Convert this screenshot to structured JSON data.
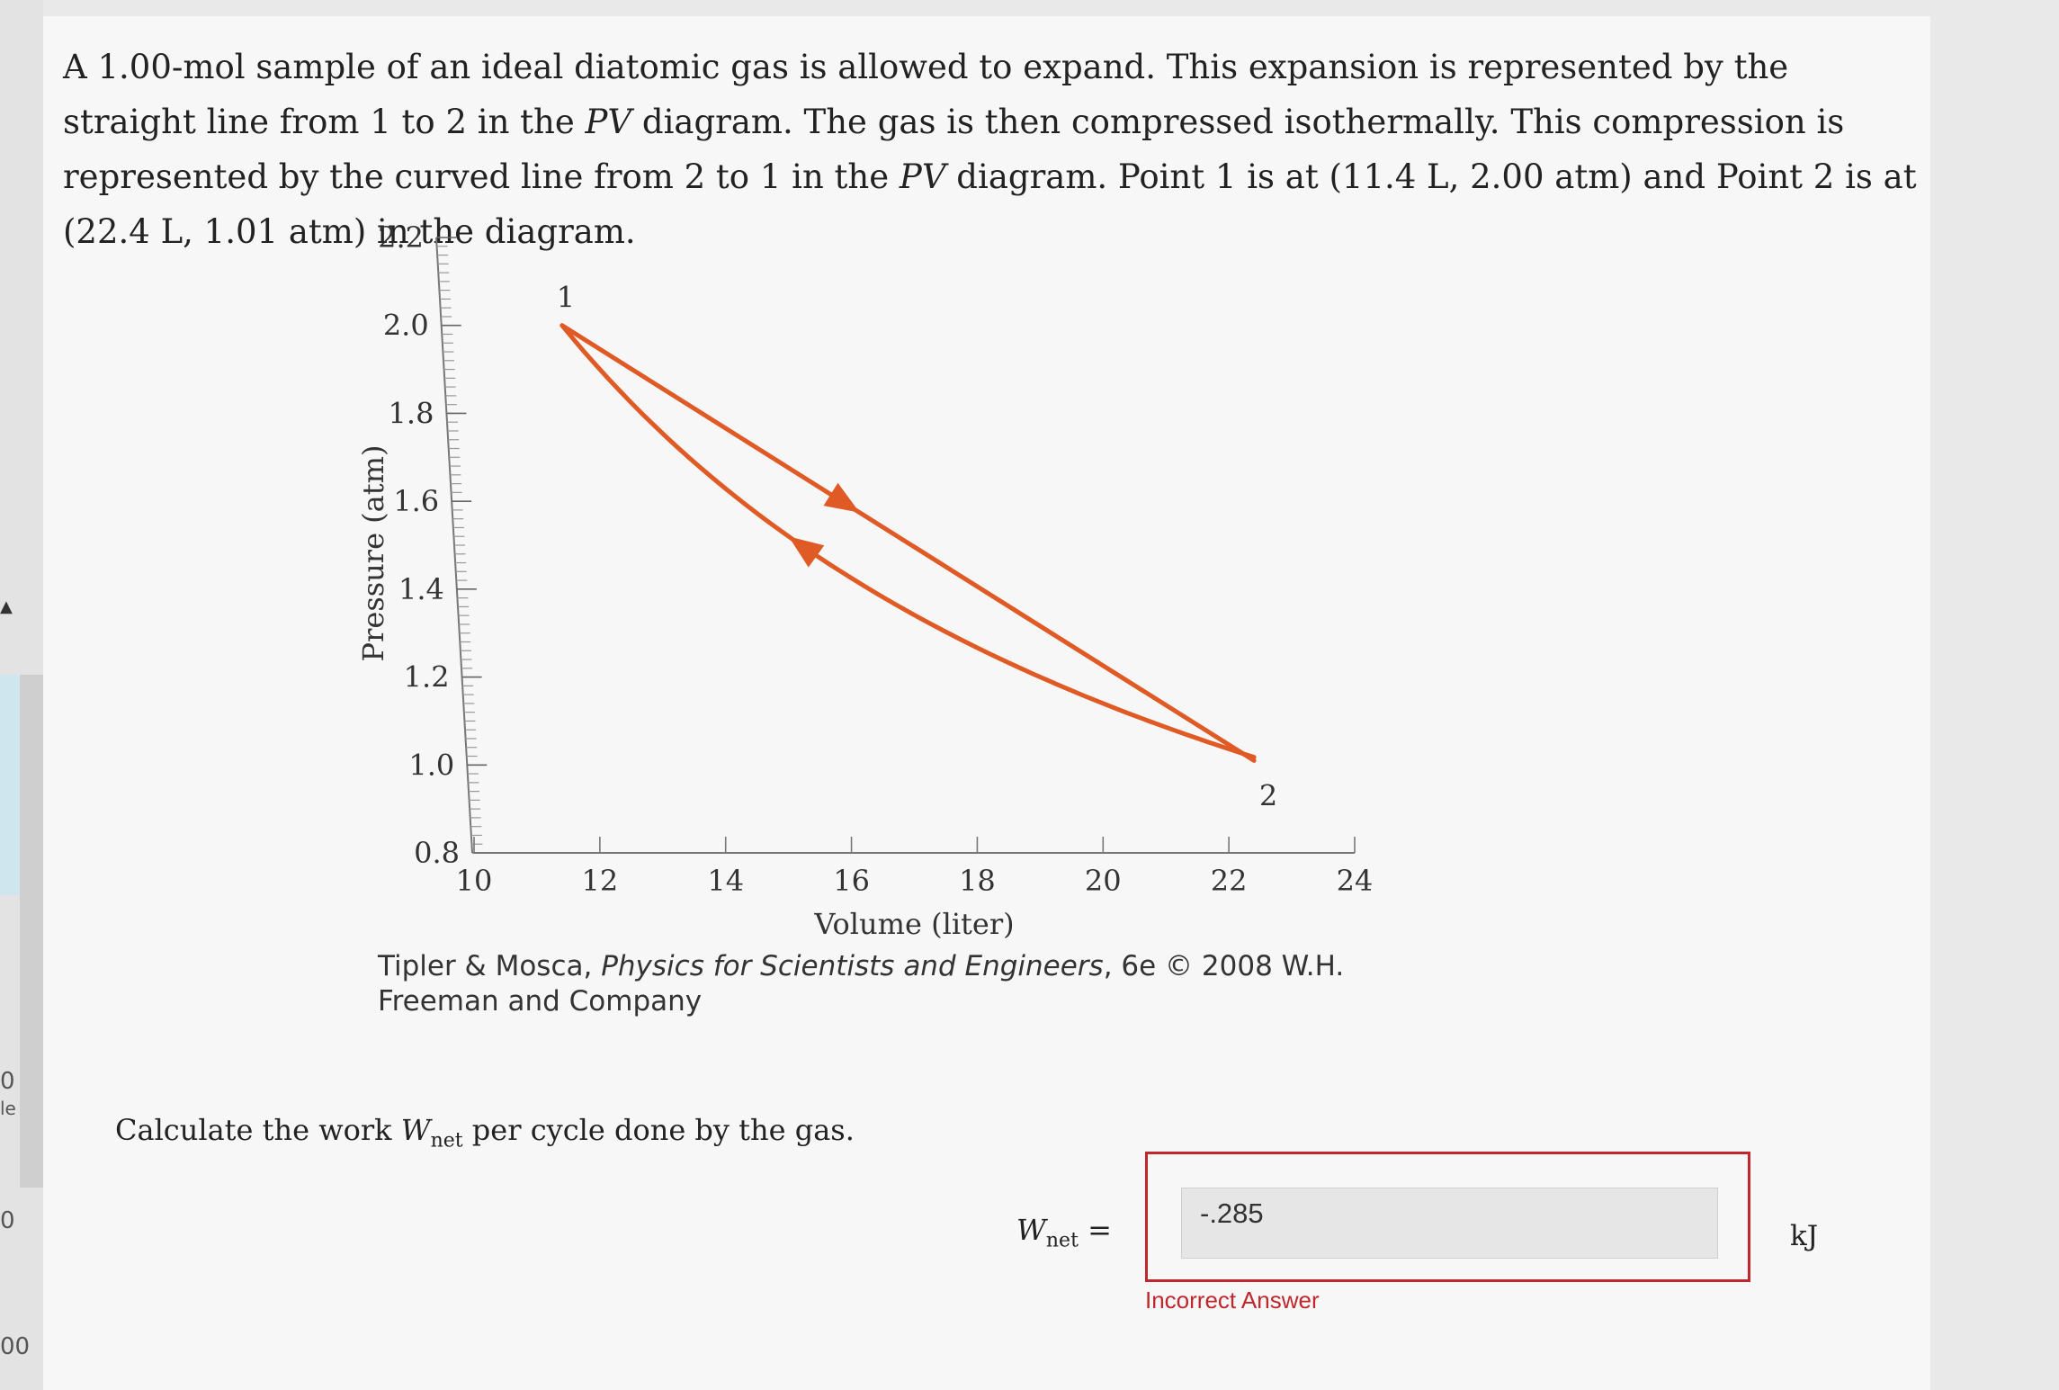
{
  "rail": {
    "texts": [
      "0",
      "le",
      "0",
      "00"
    ]
  },
  "problem": {
    "part1": "A 1.00-mol sample of an ideal diatomic gas is allowed to expand. This expansion is represented by the straight line from 1 to 2 in the ",
    "pv1": "PV",
    "part2": " diagram. The gas is then compressed isothermally. This compression is represented by the curved line from 2 to 1 in the ",
    "pv2": "PV",
    "part3": " diagram. Point 1 is at (11.4 L, 2.00 atm) and Point 2 is at (22.4 L, 1.01 atm) in the diagram."
  },
  "chart_data": {
    "type": "line",
    "xlabel": "Volume (liter)",
    "ylabel": "Pressure (atm)",
    "xlim": [
      10,
      24
    ],
    "ylim": [
      0.8,
      2.2
    ],
    "x_ticks": [
      "10",
      "12",
      "14",
      "16",
      "18",
      "20",
      "22",
      "24"
    ],
    "y_ticks": [
      "0.8",
      "1.0",
      "1.2",
      "1.4",
      "1.6",
      "1.8",
      "2.0",
      "2.2"
    ],
    "series": [
      {
        "kind": "straight",
        "points": [
          [
            11.4,
            2.0
          ],
          [
            22.4,
            1.01
          ]
        ]
      },
      {
        "kind": "isotherm",
        "points": [
          [
            22.4,
            1.01
          ],
          [
            11.4,
            2.0
          ]
        ]
      }
    ],
    "point_labels": [
      {
        "text": "1",
        "x": 11.4,
        "y": 2.0
      },
      {
        "text": "2",
        "x": 22.4,
        "y": 1.01
      }
    ],
    "line_color": "#e05a26"
  },
  "credit": {
    "authors": "Tipler & Mosca, ",
    "book": "Physics for Scientists and Engineers",
    "rest": ", 6e © 2008 W.H. Freeman and Company"
  },
  "question": {
    "before": "Calculate the work ",
    "w": "W",
    "sub": "net",
    "after": " per cycle done by the gas."
  },
  "answer": {
    "label_w": "W",
    "label_sub": "net",
    "equals": " =",
    "value": "-.285",
    "feedback": "Incorrect Answer",
    "unit": "kJ"
  }
}
